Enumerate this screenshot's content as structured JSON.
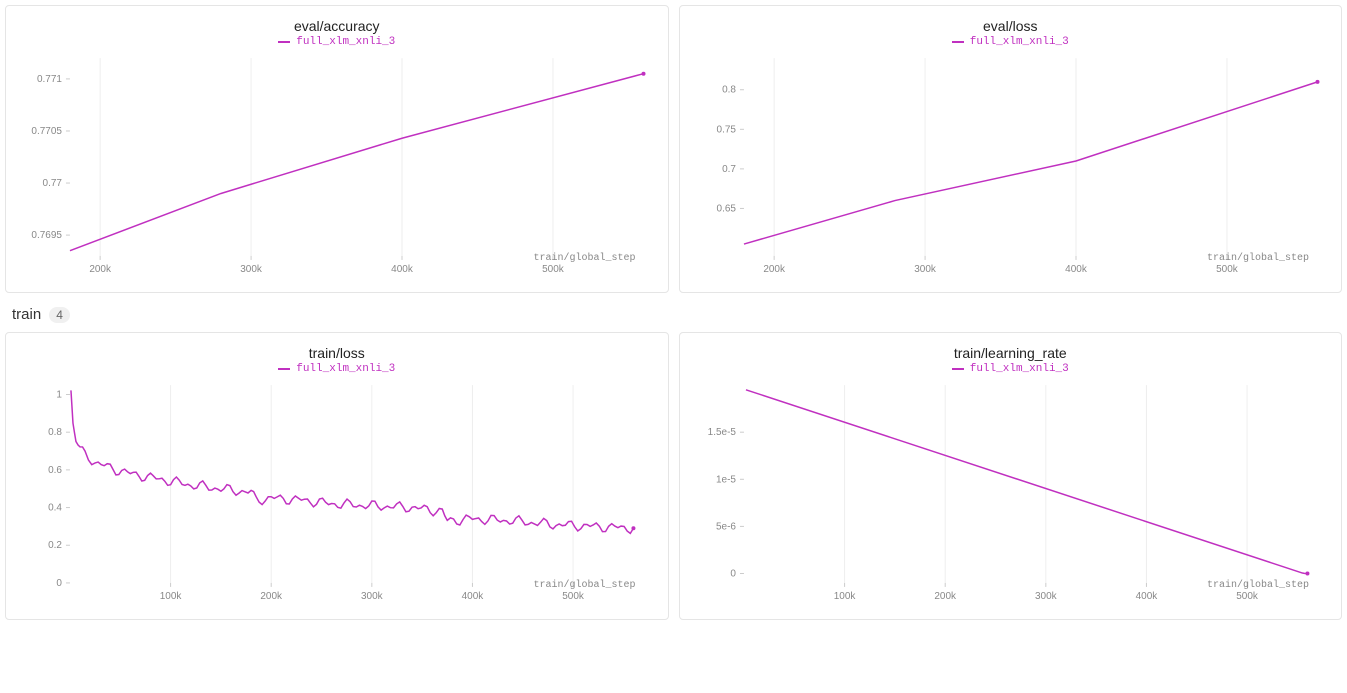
{
  "section": {
    "label": "train",
    "count": "4"
  },
  "charts": {
    "eval_accuracy": {
      "title": "eval/accuracy",
      "legend_label": "full_xlm_xnli_3",
      "line_color": "#c030c0",
      "xaxis_label": "train/global_step",
      "x_min": 180000,
      "x_max": 560000,
      "y_min": 0.7693,
      "y_max": 0.7712,
      "x_ticks": [
        200000,
        300000,
        400000,
        500000
      ],
      "x_tick_labels": [
        "200k",
        "300k",
        "400k",
        "500k"
      ],
      "y_ticks": [
        0.7695,
        0.77,
        0.7705,
        0.771
      ],
      "y_tick_labels": [
        "0.7695",
        "0.77",
        "0.7705",
        "0.771"
      ],
      "data": [
        [
          180000,
          0.76935
        ],
        [
          280000,
          0.7699
        ],
        [
          400000,
          0.77043
        ],
        [
          560000,
          0.77105
        ]
      ]
    },
    "eval_loss": {
      "title": "eval/loss",
      "legend_label": "full_xlm_xnli_3",
      "line_color": "#c030c0",
      "xaxis_label": "train/global_step",
      "x_min": 180000,
      "x_max": 560000,
      "y_min": 0.59,
      "y_max": 0.84,
      "x_ticks": [
        200000,
        300000,
        400000,
        500000
      ],
      "x_tick_labels": [
        "200k",
        "300k",
        "400k",
        "500k"
      ],
      "y_ticks": [
        0.65,
        0.7,
        0.75,
        0.8
      ],
      "y_tick_labels": [
        "0.65",
        "0.7",
        "0.75",
        "0.8"
      ],
      "data": [
        [
          180000,
          0.605
        ],
        [
          280000,
          0.66
        ],
        [
          400000,
          0.71
        ],
        [
          560000,
          0.81
        ]
      ]
    },
    "train_loss": {
      "title": "train/loss",
      "legend_label": "full_xlm_xnli_3",
      "line_color": "#c030c0",
      "xaxis_label": "train/global_step",
      "x_min": 0,
      "x_max": 570000,
      "y_min": 0,
      "y_max": 1.05,
      "x_ticks": [
        100000,
        200000,
        300000,
        400000,
        500000
      ],
      "x_tick_labels": [
        "100k",
        "200k",
        "300k",
        "400k",
        "500k"
      ],
      "y_ticks": [
        0,
        0.2,
        0.4,
        0.6,
        0.8,
        1
      ],
      "y_tick_labels": [
        "0",
        "0.2",
        "0.4",
        "0.6",
        "0.8",
        "1"
      ],
      "noise": 0.03,
      "data": [
        [
          1000,
          1.02
        ],
        [
          3000,
          0.85
        ],
        [
          6000,
          0.76
        ],
        [
          10000,
          0.71
        ],
        [
          15000,
          0.68
        ],
        [
          25000,
          0.64
        ],
        [
          40000,
          0.61
        ],
        [
          60000,
          0.58
        ],
        [
          80000,
          0.56
        ],
        [
          100000,
          0.54
        ],
        [
          120000,
          0.52
        ],
        [
          150000,
          0.5
        ],
        [
          180000,
          0.48
        ],
        [
          185000,
          0.44
        ],
        [
          200000,
          0.45
        ],
        [
          230000,
          0.44
        ],
        [
          260000,
          0.42
        ],
        [
          300000,
          0.41
        ],
        [
          340000,
          0.4
        ],
        [
          370000,
          0.38
        ],
        [
          375000,
          0.33
        ],
        [
          400000,
          0.34
        ],
        [
          440000,
          0.33
        ],
        [
          480000,
          0.31
        ],
        [
          520000,
          0.3
        ],
        [
          560000,
          0.29
        ]
      ]
    },
    "train_lr": {
      "title": "train/learning_rate",
      "legend_label": "full_xlm_xnli_3",
      "line_color": "#c030c0",
      "xaxis_label": "train/global_step",
      "x_min": 0,
      "x_max": 570000,
      "y_min": -1e-06,
      "y_max": 2e-05,
      "x_ticks": [
        100000,
        200000,
        300000,
        400000,
        500000
      ],
      "x_tick_labels": [
        "100k",
        "200k",
        "300k",
        "400k",
        "500k"
      ],
      "y_ticks": [
        0,
        5e-06,
        1e-05,
        1.5e-05
      ],
      "y_tick_labels": [
        "0",
        "5e-6",
        "1e-5",
        "1.5e-5"
      ],
      "data": [
        [
          2000,
          1.95e-05
        ],
        [
          555000,
          5e-08
        ],
        [
          557000,
          2e-08
        ],
        [
          560000,
          0
        ]
      ]
    }
  }
}
